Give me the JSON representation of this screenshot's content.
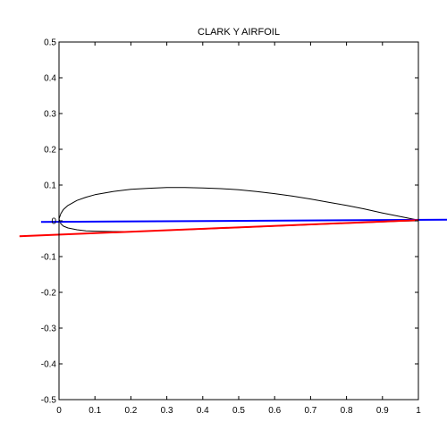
{
  "chart_data": {
    "type": "line",
    "title": "CLARK Y AIRFOIL",
    "xlabel": "",
    "ylabel": "",
    "xlim": [
      0,
      1
    ],
    "ylim": [
      -0.5,
      0.5
    ],
    "grid": false,
    "x_ticks": [
      0,
      0.1,
      0.2,
      0.3,
      0.4,
      0.5,
      0.6,
      0.7,
      0.8,
      0.9,
      1
    ],
    "x_tick_labels": [
      "0",
      "0.1",
      "0.2",
      "0.3",
      "0.4",
      "0.5",
      "0.6",
      "0.7",
      "0.8",
      "0.9",
      "1"
    ],
    "y_ticks": [
      -0.5,
      -0.4,
      -0.3,
      -0.2,
      -0.1,
      0,
      0.1,
      0.2,
      0.3,
      0.4,
      0.5
    ],
    "y_tick_labels": [
      "-0.5",
      "-0.4",
      "-0.3",
      "-0.2",
      "-0.1",
      "0",
      "0.1",
      "0.2",
      "0.3",
      "0.4",
      "0.5"
    ],
    "series": [
      {
        "color": "#000000",
        "x": [
          1.0,
          0.95,
          0.9,
          0.85,
          0.8,
          0.75,
          0.7,
          0.65,
          0.6,
          0.55,
          0.5,
          0.45,
          0.4,
          0.35,
          0.3,
          0.25,
          0.2,
          0.15,
          0.1,
          0.075,
          0.05,
          0.025,
          0.0125,
          0.005,
          0.0,
          0.005,
          0.0125,
          0.025,
          0.05,
          0.075,
          0.1,
          0.15,
          0.2,
          0.3,
          0.4,
          0.5,
          0.6,
          0.7,
          0.8,
          0.9,
          0.95,
          1.0
        ],
        "y": [
          0.002,
          0.012,
          0.022,
          0.033,
          0.043,
          0.052,
          0.061,
          0.069,
          0.076,
          0.082,
          0.087,
          0.09,
          0.092,
          0.093,
          0.093,
          0.091,
          0.088,
          0.082,
          0.073,
          0.066,
          0.057,
          0.043,
          0.032,
          0.02,
          0.005,
          -0.008,
          -0.015,
          -0.02,
          -0.025,
          -0.028,
          -0.029,
          -0.03,
          -0.03,
          -0.027,
          -0.023,
          -0.019,
          -0.015,
          -0.011,
          -0.007,
          -0.003,
          -0.001,
          0.0
        ]
      },
      {
        "color": "#0000ff",
        "x": [
          -0.05,
          1.08
        ],
        "y": [
          -0.003,
          0.003
        ]
      },
      {
        "color": "#ff0000",
        "x": [
          -0.11,
          1.0
        ],
        "y": [
          -0.043,
          0.002
        ]
      }
    ]
  }
}
